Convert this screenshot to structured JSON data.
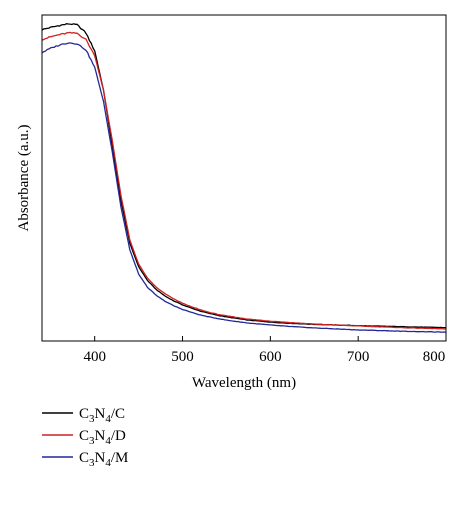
{
  "chart_data": {
    "type": "line",
    "xlabel": "Wavelength (nm)",
    "ylabel": "Absorbance (a.u.)",
    "xlim": [
      340,
      800
    ],
    "ylim": [
      0.0,
      1.0
    ],
    "x_ticks": [
      400,
      500,
      600,
      700,
      800
    ],
    "y_ticks_shown": false,
    "grid": false,
    "legend_position": "below-left",
    "series": [
      {
        "name": "C3N4/C",
        "legend_parts": [
          {
            "t": "C"
          },
          {
            "t": "3",
            "sub": true
          },
          {
            "t": "N"
          },
          {
            "t": "4",
            "sub": true
          },
          {
            "t": "/C"
          }
        ],
        "color": "#000000",
        "points": [
          [
            340,
            0.955
          ],
          [
            350,
            0.962
          ],
          [
            360,
            0.968
          ],
          [
            370,
            0.973
          ],
          [
            380,
            0.97
          ],
          [
            390,
            0.945
          ],
          [
            400,
            0.89
          ],
          [
            410,
            0.77
          ],
          [
            420,
            0.6
          ],
          [
            430,
            0.43
          ],
          [
            440,
            0.3
          ],
          [
            450,
            0.228
          ],
          [
            460,
            0.186
          ],
          [
            470,
            0.158
          ],
          [
            480,
            0.138
          ],
          [
            490,
            0.123
          ],
          [
            500,
            0.111
          ],
          [
            510,
            0.101
          ],
          [
            520,
            0.092
          ],
          [
            530,
            0.085
          ],
          [
            540,
            0.079
          ],
          [
            550,
            0.074
          ],
          [
            575,
            0.064
          ],
          [
            600,
            0.058
          ],
          [
            625,
            0.054
          ],
          [
            650,
            0.051
          ],
          [
            700,
            0.047
          ],
          [
            750,
            0.044
          ],
          [
            800,
            0.041
          ]
        ]
      },
      {
        "name": "C3N4/D",
        "legend_parts": [
          {
            "t": "C"
          },
          {
            "t": "3",
            "sub": true
          },
          {
            "t": "N"
          },
          {
            "t": "4",
            "sub": true
          },
          {
            "t": "/D"
          }
        ],
        "color": "#cc2222",
        "points": [
          [
            340,
            0.925
          ],
          [
            350,
            0.933
          ],
          [
            360,
            0.94
          ],
          [
            370,
            0.945
          ],
          [
            380,
            0.944
          ],
          [
            390,
            0.925
          ],
          [
            400,
            0.875
          ],
          [
            410,
            0.77
          ],
          [
            420,
            0.615
          ],
          [
            430,
            0.445
          ],
          [
            440,
            0.31
          ],
          [
            450,
            0.236
          ],
          [
            460,
            0.193
          ],
          [
            470,
            0.165
          ],
          [
            480,
            0.145
          ],
          [
            490,
            0.129
          ],
          [
            500,
            0.116
          ],
          [
            510,
            0.105
          ],
          [
            520,
            0.096
          ],
          [
            530,
            0.088
          ],
          [
            540,
            0.082
          ],
          [
            550,
            0.077
          ],
          [
            575,
            0.067
          ],
          [
            600,
            0.061
          ],
          [
            625,
            0.056
          ],
          [
            650,
            0.052
          ],
          [
            700,
            0.046
          ],
          [
            750,
            0.041
          ],
          [
            800,
            0.037
          ]
        ]
      },
      {
        "name": "C3N4/M",
        "legend_parts": [
          {
            "t": "C"
          },
          {
            "t": "3",
            "sub": true
          },
          {
            "t": "N"
          },
          {
            "t": "4",
            "sub": true
          },
          {
            "t": "/M"
          }
        ],
        "color": "#22289a",
        "points": [
          [
            340,
            0.885
          ],
          [
            350,
            0.898
          ],
          [
            360,
            0.908
          ],
          [
            370,
            0.915
          ],
          [
            380,
            0.912
          ],
          [
            390,
            0.893
          ],
          [
            400,
            0.84
          ],
          [
            410,
            0.735
          ],
          [
            420,
            0.58
          ],
          [
            430,
            0.41
          ],
          [
            440,
            0.28
          ],
          [
            450,
            0.205
          ],
          [
            460,
            0.165
          ],
          [
            470,
            0.14
          ],
          [
            480,
            0.122
          ],
          [
            490,
            0.108
          ],
          [
            500,
            0.097
          ],
          [
            510,
            0.088
          ],
          [
            520,
            0.08
          ],
          [
            530,
            0.074
          ],
          [
            540,
            0.069
          ],
          [
            550,
            0.064
          ],
          [
            575,
            0.055
          ],
          [
            600,
            0.049
          ],
          [
            625,
            0.044
          ],
          [
            650,
            0.04
          ],
          [
            700,
            0.034
          ],
          [
            750,
            0.03
          ],
          [
            800,
            0.027
          ]
        ]
      }
    ]
  }
}
